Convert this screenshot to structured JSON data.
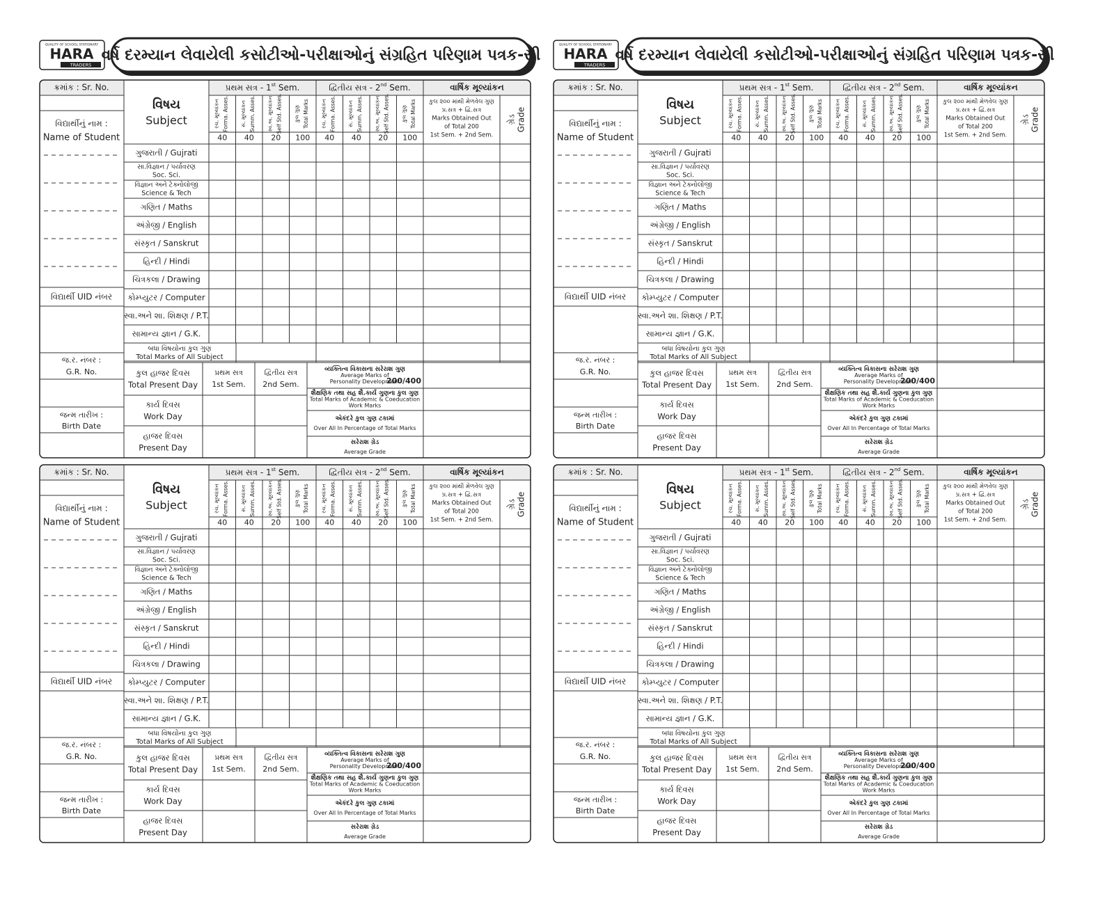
{
  "header": {
    "logo_top": "QUALITY OF SCHOOL STATIONARY",
    "logo": "HARA",
    "logo_sub": "TRADERS",
    "title": "વર્ષ દરમ્યાન લેવાયેલી કસોટીઓ-પરીક્ષાઓનું સંગ્રહિત પરિણામ પત્રક-સી"
  },
  "form": {
    "sr_no": "ક્રમાંક : Sr. No.",
    "subject_gu": "વિષય",
    "subject_en": "Subject",
    "sem1": {
      "label": "પ્રથમ સત્ર - 1",
      "sup": "st",
      "tail": " Sem."
    },
    "sem2": {
      "label": "દ્વિતીય સત્ર - 2",
      "sup": "nd",
      "tail": " Sem."
    },
    "annual": "વાર્ષિક મૂલ્યાંકન",
    "annual_lines": [
      "કુલ ૨૦૦ માંથી મેળવેલ ગુણ",
      "પ્ર.સત્ર + દ્વિ.સત્ર",
      "Marks Obtained Out",
      "of Total 200",
      "1st Sem. + 2nd Sem."
    ],
    "grade": [
      "ગ્રેડ",
      "Grade"
    ],
    "assessments": [
      [
        "રચ. મૂલ્યાંકન",
        "Forma. Asses."
      ],
      [
        "સં. મૂલ્યાંકન",
        "Summ. Asses."
      ],
      [
        "સ્વ.અ. મૂલ્યાંકન",
        "Self Std. Asses."
      ],
      [
        "કુલ ગુણ",
        "Total Marks"
      ]
    ],
    "max_marks": [
      40,
      40,
      20,
      100
    ],
    "name_gu": "વિદ્યાર્થીનું નામ :",
    "name_en": "Name of Student",
    "uid": "વિદ્યાર્થી UID નંબર",
    "gr": [
      "જ.ર. નંબર :",
      "G.R. No."
    ],
    "birth": [
      "જન્મ તારીખ :",
      "Birth Date"
    ],
    "subjects": [
      [
        "ગુજરાતી / Gujrati"
      ],
      [
        "સા.વિજ્ઞાન / પર્યાવરણ",
        "Soc. Sci."
      ],
      [
        "વિજ્ઞાન અને ટેક્નોલોજી",
        "Science & Tech"
      ],
      [
        "ગણિત / Maths"
      ],
      [
        "અંગ્રેજી / English"
      ],
      [
        "સંસ્કૃત / Sanskrut"
      ],
      [
        "હિન્દી / Hindi"
      ],
      [
        "ચિત્રકલા / Drawing"
      ],
      [
        "કોમ્પ્યુટર / Computer"
      ],
      [
        "સ્વા.અને શા. શિક્ષણ / P.T."
      ],
      [
        "સામાન્ય જ્ઞાન / G.K."
      ]
    ],
    "total_row": [
      "બધા વિષયોના કુલ ગુણ",
      "Total Marks of All Subject"
    ],
    "attendance": [
      [
        "કુલ હાજર દિવસ",
        "Total Present Day"
      ],
      [
        "કાર્ય દિવસ",
        "Work Day"
      ],
      [
        "હાજર દિવસ",
        "Present Day"
      ]
    ],
    "att_sem1": [
      "પ્રથમ સત્ર",
      "1st Sem."
    ],
    "att_sem2": [
      "દ્વિતીય સત્ર",
      "2nd Sem."
    ],
    "summary": [
      {
        "lines": [
          "વ્યક્તિત્વ વિકાસના સરેરાશ ગુણ",
          "Average Marks of",
          "Personality Development"
        ],
        "value": "200/400"
      },
      {
        "lines": [
          "શૈક્ષણિક તથા સહ શૈ.કાર્ય ગુણના કુલ ગુણ",
          "Total Marks of Academic & Coeducation",
          "Work Marks"
        ]
      },
      {
        "lines": [
          "એકંદરે કુલ ગુણ ટકામાં",
          "Over All In Percentage of Total Marks"
        ]
      },
      {
        "lines": [
          "સરેરાશ ગ્રેડ",
          "Average Grade"
        ]
      }
    ]
  }
}
